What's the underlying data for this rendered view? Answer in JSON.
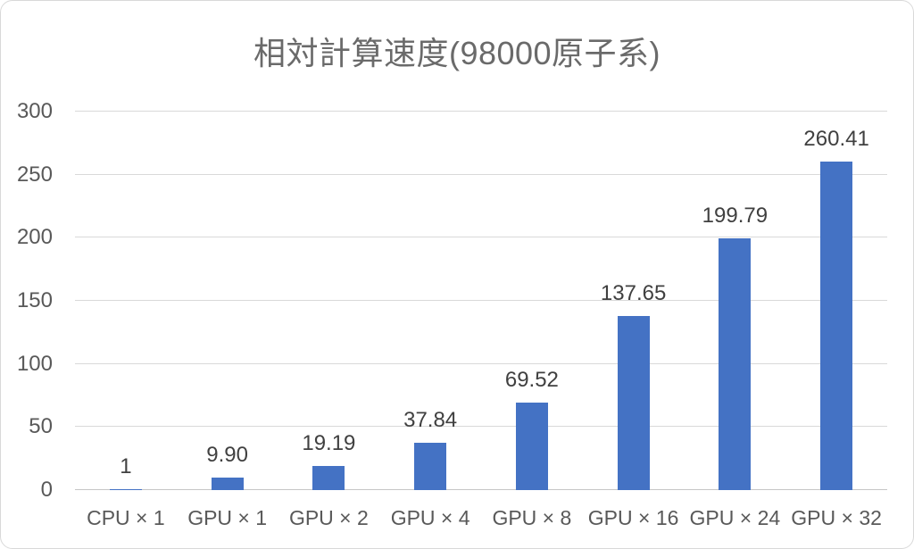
{
  "chart_data": {
    "type": "bar",
    "title": "相対計算速度(98000原子系)",
    "categories": [
      "CPU × 1",
      "GPU × 1",
      "GPU × 2",
      "GPU × 4",
      "GPU × 8",
      "GPU × 16",
      "GPU × 24",
      "GPU × 32"
    ],
    "values": [
      1,
      9.9,
      19.19,
      37.84,
      69.52,
      137.65,
      199.79,
      260.41
    ],
    "data_labels": [
      "1",
      "9.90",
      "19.19",
      "37.84",
      "69.52",
      "137.65",
      "199.79",
      "260.41"
    ],
    "xlabel": "",
    "ylabel": "",
    "ylim": [
      0,
      300
    ],
    "yticks": [
      0,
      50,
      100,
      150,
      200,
      250,
      300
    ],
    "grid": true,
    "legend": false,
    "colors": {
      "bar": "#4472c4",
      "title_text": "#6a6a6a",
      "axis_text": "#595959",
      "data_label_text": "#404040",
      "gridline": "#d9d9d9",
      "axis_line": "#c6c6c6"
    }
  }
}
